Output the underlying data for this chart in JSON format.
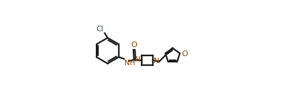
{
  "background_color": "#ffffff",
  "line_color": "#1a1a1a",
  "heteroatom_color": "#8B4000",
  "cl_color": "#2F4F4F",
  "bond_lw": 1.6,
  "figsize": [
    4.26,
    1.53
  ],
  "dpi": 100,
  "xlim": [
    0.0,
    1.0
  ],
  "ylim": [
    0.05,
    0.95
  ]
}
